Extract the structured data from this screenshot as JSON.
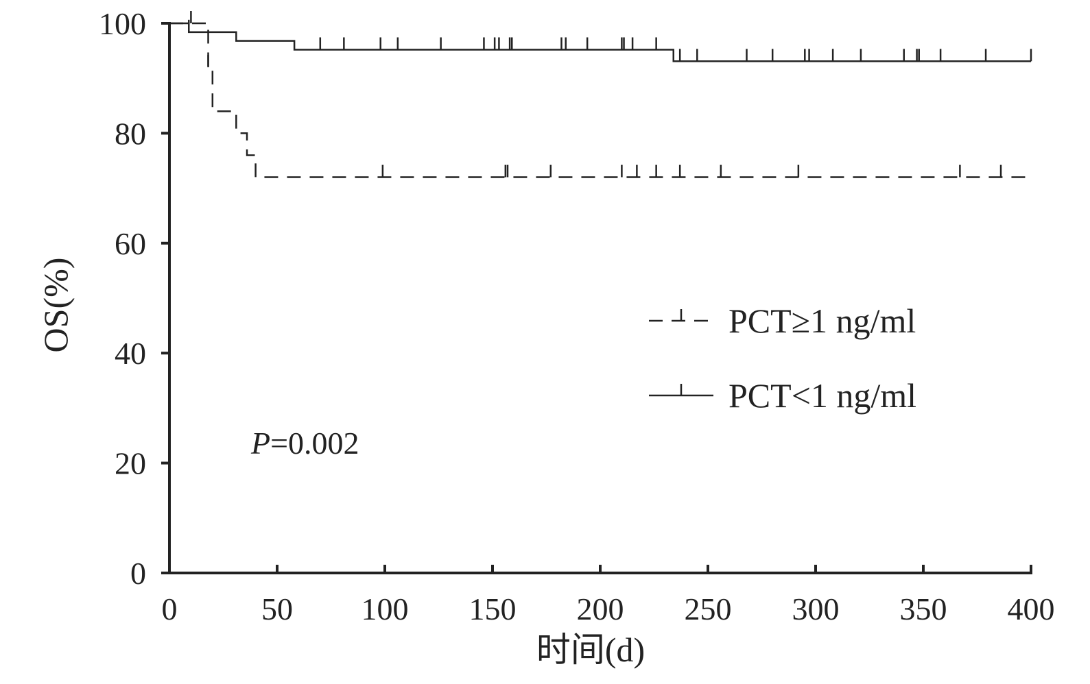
{
  "chart_data": {
    "type": "line",
    "subtype": "kaplan-meier",
    "xlabel": "时间(d)",
    "ylabel": "OS(%)",
    "xlim": [
      0,
      400
    ],
    "ylim": [
      0,
      100
    ],
    "xticks": [
      0,
      50,
      100,
      150,
      200,
      250,
      300,
      350,
      400
    ],
    "yticks": [
      0,
      20,
      40,
      60,
      80,
      100
    ],
    "grid": false,
    "legend_position": "right-middle",
    "annotation": {
      "prefix": "P",
      "value": "=0.002"
    },
    "series": [
      {
        "name": "PCT≥1 ng/ml",
        "style": "dashed",
        "steps": [
          [
            0,
            100
          ],
          [
            18,
            92
          ],
          [
            20,
            84
          ],
          [
            31,
            80
          ],
          [
            36,
            76
          ],
          [
            40,
            72
          ],
          [
            400,
            72
          ]
        ],
        "censored": [
          10,
          18,
          99,
          156,
          157,
          177,
          210,
          217,
          226,
          237,
          256,
          292,
          367,
          386
        ]
      },
      {
        "name": "PCT<1 ng/ml",
        "style": "solid",
        "steps": [
          [
            0,
            100
          ],
          [
            9,
            98.4
          ],
          [
            31,
            96.8
          ],
          [
            58,
            95.2
          ],
          [
            234,
            93.1
          ],
          [
            400,
            93.1
          ]
        ],
        "censored": [
          9,
          70,
          81,
          98,
          106,
          126,
          146,
          151,
          153,
          158,
          159,
          182,
          184,
          194,
          210,
          211,
          215,
          226,
          237,
          245,
          268,
          280,
          295,
          297,
          308,
          321,
          341,
          347,
          348,
          358,
          379,
          400
        ]
      }
    ]
  }
}
